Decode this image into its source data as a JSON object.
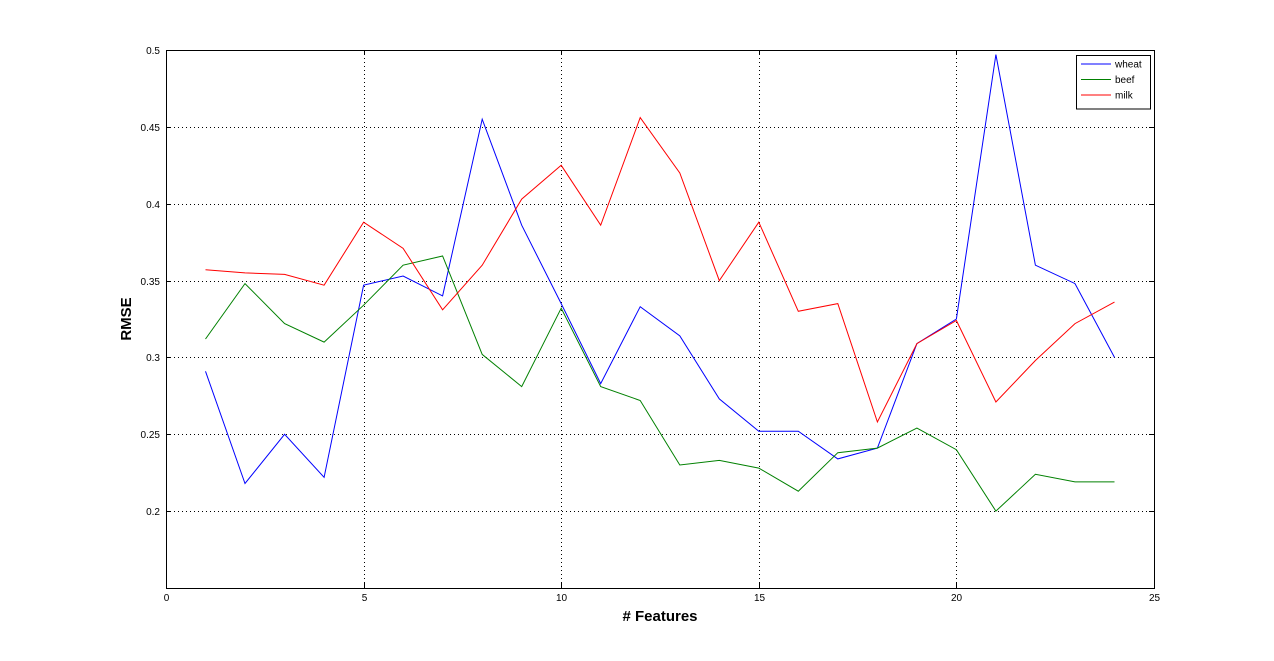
{
  "chart_data": {
    "type": "line",
    "title": "",
    "xlabel": "# Features",
    "ylabel": "RMSE",
    "xlim": [
      0,
      25
    ],
    "ylim": [
      0.15,
      0.5
    ],
    "xticks": [
      0,
      5,
      10,
      15,
      20,
      25
    ],
    "yticks": [
      0.2,
      0.25,
      0.3,
      0.35,
      0.4,
      0.45,
      0.5
    ],
    "xtick_labels": [
      "0",
      "5",
      "10",
      "15",
      "20",
      "25"
    ],
    "ytick_labels": [
      "0.2",
      "0.25",
      "0.3",
      "0.35",
      "0.4",
      "0.45",
      "0.5"
    ],
    "grid": true,
    "legend_position": "top-right",
    "x": [
      1,
      2,
      3,
      4,
      5,
      6,
      7,
      8,
      9,
      10,
      11,
      12,
      13,
      14,
      15,
      16,
      17,
      18,
      19,
      20,
      21,
      22,
      23,
      24
    ],
    "series": [
      {
        "name": "wheat",
        "color": "#0000ff",
        "values": [
          0.291,
          0.218,
          0.25,
          0.222,
          0.347,
          0.353,
          0.34,
          0.455,
          0.386,
          0.335,
          0.283,
          0.333,
          0.314,
          0.273,
          0.252,
          0.252,
          0.234,
          0.241,
          0.309,
          0.325,
          0.497,
          0.36,
          0.348,
          0.3
        ]
      },
      {
        "name": "beef",
        "color": "#008000",
        "values": [
          0.312,
          0.348,
          0.322,
          0.31,
          0.334,
          0.36,
          0.366,
          0.302,
          0.281,
          0.332,
          0.281,
          0.272,
          0.23,
          0.233,
          0.228,
          0.213,
          0.238,
          0.241,
          0.254,
          0.24,
          0.2,
          0.224,
          0.219,
          0.219
        ]
      },
      {
        "name": "milk",
        "color": "#ff0000",
        "values": [
          0.357,
          0.355,
          0.354,
          0.347,
          0.388,
          0.371,
          0.331,
          0.36,
          0.403,
          0.425,
          0.386,
          0.456,
          0.42,
          0.35,
          0.388,
          0.33,
          0.335,
          0.258,
          0.309,
          0.324,
          0.271,
          0.298,
          0.322,
          0.336
        ]
      }
    ]
  }
}
